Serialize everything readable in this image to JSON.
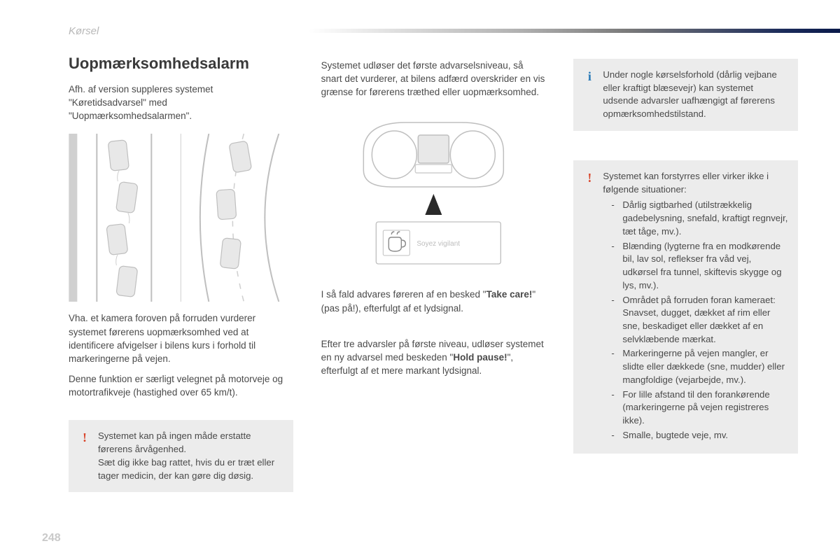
{
  "header": {
    "section_label": "Kørsel"
  },
  "col1": {
    "heading": "Uopmærksomhedsalarm",
    "intro": "Afh. af version suppleres systemet \"Køretidsadvarsel\" med \"Uopmærksomhedsalarmen\".",
    "after_diagram_p1": "Vha. et kamera foroven på forruden vurderer systemet førerens uopmærksomhed ved at identificere afvigelser i bilens kurs i forhold til markeringerne på vejen.",
    "after_diagram_p2": "Denne funktion er særligt velegnet på motorveje og motortrafikveje (hastighed over 65 km/t).",
    "warn1": "Systemet kan på ingen måde erstatte førerens årvågenhed.\nSæt dig ikke bag rattet, hvis du er træt eller tager medicin, der kan gøre dig døsig."
  },
  "col2": {
    "p1": "Systemet udløser det første advarselsniveau, så snart det vurderer, at bilens adfærd overskrider en vis grænse for førerens træthed eller uopmærksomhed.",
    "p2_pre": "I så fald advares føreren af en besked \"",
    "p2_bold": "Take care!",
    "p2_post": "\" (pas på!), efterfulgt af et lydsignal.",
    "p3_pre": "Efter tre advarsler på første niveau, udløser systemet en ny advarsel med beskeden \"",
    "p3_bold": "Hold pause!",
    "p3_post": "\", efterfulgt af et mere markant lydsignal.",
    "dash_label": "Soyez vigilant"
  },
  "col3": {
    "info": "Under nogle kørselsforhold (dårlig vejbane eller kraftigt blæsevejr) kan systemet udsende advarsler uafhængigt af førerens opmærksomhedstilstand.",
    "warn2_intro": "Systemet kan forstyrres eller virker ikke i følgende situationer:",
    "warn2_items": [
      "Dårlig sigtbarhed (utilstrækkelig gadebelysning, snefald, kraftigt regnvejr, tæt tåge, mv.).",
      "Blænding (lygterne fra en modkørende bil, lav sol, reflekser fra våd vej, udkørsel fra tunnel, skiftevis skygge og lys, mv.).",
      "Området på forruden foran kameraet: Snavset, dugget, dækket af rim eller sne, beskadiget eller dækket af en selvklæbende mærkat.",
      "Markeringerne på vejen mangler, er slidte eller dækkede (sne, mudder) eller mangfoldige (vejarbejde, mv.).",
      "For lille afstand til den forankørende (markeringerne på vejen registreres ikke).",
      "Smalle, bugtede veje, mv."
    ]
  },
  "page_number": "248",
  "colors": {
    "text": "#4a4a4a",
    "heading": "#3a3a3a",
    "muted": "#b8b8b8",
    "callout_bg": "#ececec",
    "warn_icon": "#d9452b",
    "info_icon": "#2a7ab8",
    "pagenum": "#c9c9c9",
    "gradient_end": "#0a1a4a"
  }
}
